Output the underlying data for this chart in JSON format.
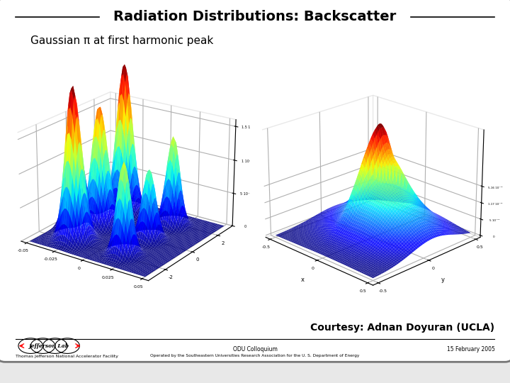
{
  "title": "Radiation Distributions: Backscatter",
  "subtitle": "Gaussian π at first harmonic peak",
  "courtesy": "Courtesy: Adnan Doyuran (UCLA)",
  "footer_center": "ODU Colloquium",
  "footer_right": "15 February 2005",
  "footer_left": "Thomas Jefferson National Accelerator Facility",
  "footer_sub": "Operated by the Southeastern Universities Research Association for the U. S. Department of Energy",
  "bg_color": "#e8e8e8",
  "inner_bg": "#ffffff",
  "border_color": "#777777",
  "title_color": "#000000"
}
